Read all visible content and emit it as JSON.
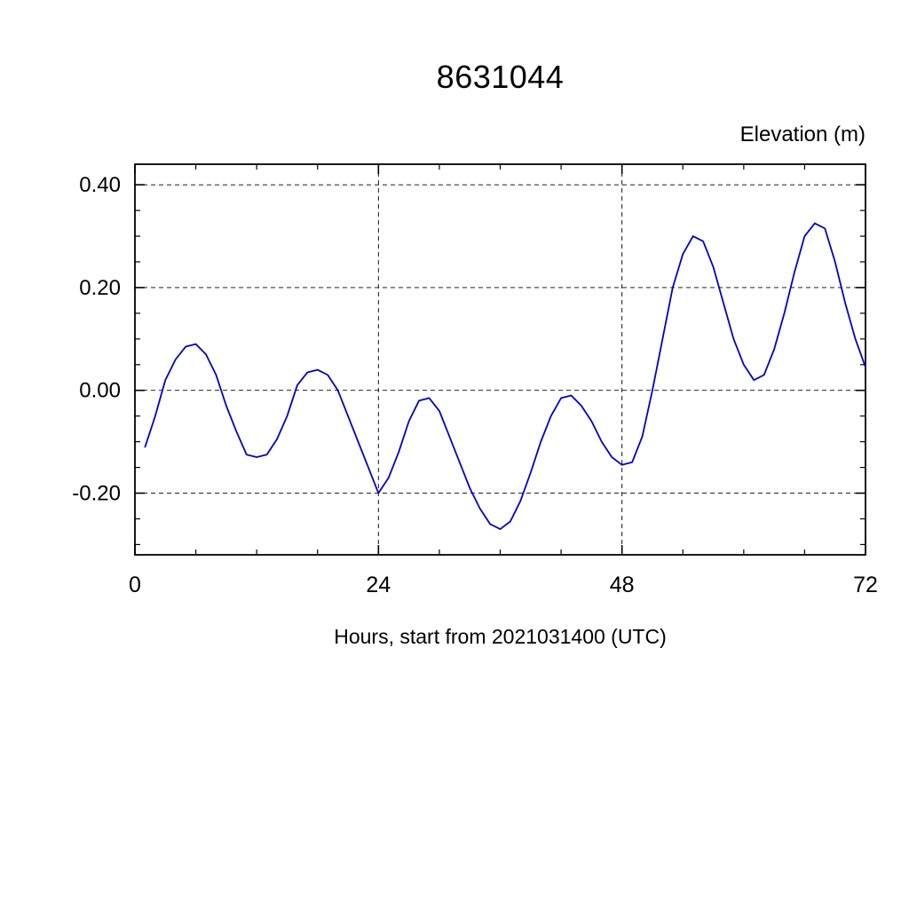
{
  "page": {
    "background": "#ffffff"
  },
  "chart_data": {
    "type": "line",
    "title": "8631044",
    "ylabel": "Elevation (m)",
    "xlabel": "Hours, start from 2021031400 (UTC)",
    "xlim": [
      0,
      72
    ],
    "ylim": [
      -0.32,
      0.44
    ],
    "x_major_ticks": [
      0,
      24,
      48,
      72
    ],
    "x_tick_labels": [
      "0",
      "24",
      "48",
      "72"
    ],
    "x_minor_step": 6,
    "y_major_ticks": [
      -0.2,
      0.0,
      0.2,
      0.4
    ],
    "y_tick_labels": [
      "-0.20",
      "0.00",
      "0.20",
      "0.40"
    ],
    "y_minor_step": 0.05,
    "grid": {
      "horizontal_at": [
        -0.2,
        0.0,
        0.2,
        0.4
      ],
      "vertical_at": [
        24,
        48
      ],
      "style": "dashed",
      "color": "#000000"
    },
    "frame_color": "#000000",
    "series": [
      {
        "name": "elevation",
        "color": "#0000cd",
        "x": [
          1,
          2,
          3,
          4,
          5,
          6,
          7,
          8,
          9,
          10,
          11,
          12,
          13,
          14,
          15,
          16,
          17,
          18,
          19,
          20,
          21,
          22,
          23,
          24,
          25,
          26,
          27,
          28,
          29,
          30,
          31,
          32,
          33,
          34,
          35,
          36,
          37,
          38,
          39,
          40,
          41,
          42,
          43,
          44,
          45,
          46,
          47,
          48,
          49,
          50,
          51,
          52,
          53,
          54,
          55,
          56,
          57,
          58,
          59,
          60,
          61,
          62,
          63,
          64,
          65,
          66,
          67,
          68,
          69,
          70,
          71,
          72
        ],
        "y": [
          -0.11,
          -0.05,
          0.02,
          0.06,
          0.085,
          0.09,
          0.07,
          0.03,
          -0.03,
          -0.08,
          -0.125,
          -0.13,
          -0.125,
          -0.095,
          -0.05,
          0.01,
          0.035,
          0.04,
          0.03,
          0.0,
          -0.05,
          -0.1,
          -0.15,
          -0.2,
          -0.17,
          -0.12,
          -0.06,
          -0.02,
          -0.015,
          -0.04,
          -0.09,
          -0.14,
          -0.19,
          -0.23,
          -0.26,
          -0.27,
          -0.255,
          -0.215,
          -0.16,
          -0.1,
          -0.05,
          -0.015,
          -0.01,
          -0.03,
          -0.06,
          -0.1,
          -0.13,
          -0.145,
          -0.14,
          -0.09,
          0.0,
          0.1,
          0.2,
          0.265,
          0.3,
          0.29,
          0.24,
          0.17,
          0.1,
          0.05,
          0.02,
          0.03,
          0.08,
          0.15,
          0.23,
          0.3,
          0.325,
          0.315,
          0.25,
          0.17,
          0.1,
          0.045
        ]
      }
    ]
  }
}
